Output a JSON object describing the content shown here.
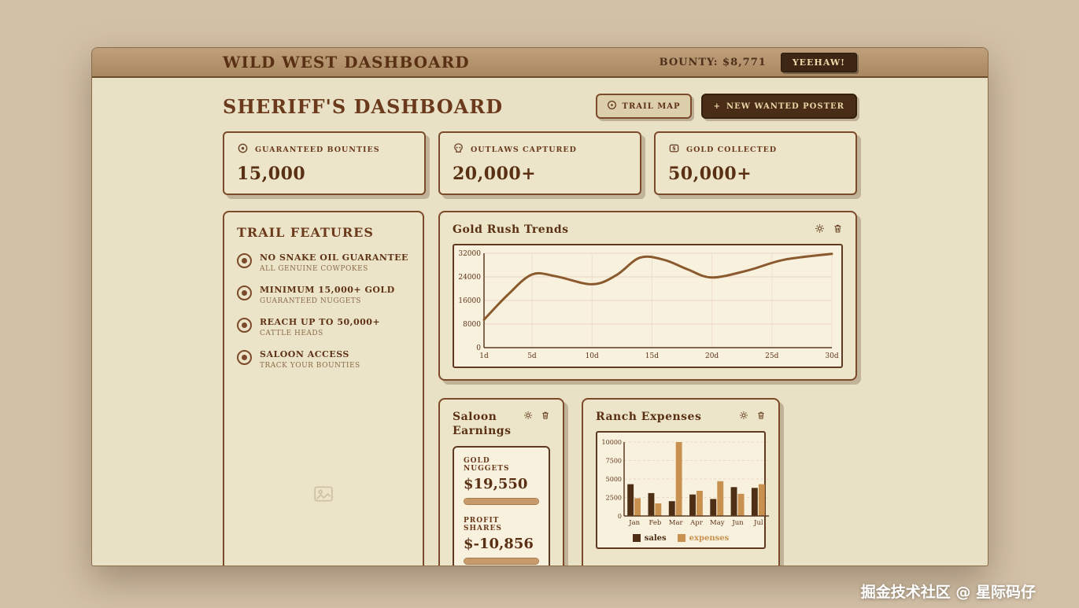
{
  "watermark": "掘金技术社区 @ 星际码仔",
  "theme": {
    "background": "#d3c1a7",
    "panel_bg": "#e9e1c5",
    "card_bg": "#ece5c9",
    "border_brown": "#7b4a2a",
    "dark_brown": "#4a2d16",
    "cream": "#f8f1de",
    "text_brown": "#5f3317"
  },
  "titlebar": {
    "title": "WILD WEST DASHBOARD",
    "bounty": "BOUNTY: $8,771",
    "yeehaw_label": "YEEHAW!"
  },
  "header": {
    "title": "SHERIFF'S DASHBOARD",
    "trail_map_label": "TRAIL MAP",
    "new_poster_plus": "+",
    "new_poster_label": "NEW WANTED POSTER"
  },
  "stats": [
    {
      "icon": "badge-target-icon",
      "label": "GUARANTEED BOUNTIES",
      "value": "15,000"
    },
    {
      "icon": "skull-icon",
      "label": "OUTLAWS CAPTURED",
      "value": "20,000+"
    },
    {
      "icon": "gold-coin-icon",
      "label": "GOLD COLLECTED",
      "value": "50,000+"
    }
  ],
  "trail_features": {
    "title": "TRAIL FEATURES",
    "items": [
      {
        "title": "NO SNAKE OIL GUARANTEE",
        "subtitle": "ALL GENUINE COWPOKES"
      },
      {
        "title": "MINIMUM 15,000+ GOLD",
        "subtitle": "GUARANTEED NUGGETS"
      },
      {
        "title": "REACH UP TO 50,000+",
        "subtitle": "CATTLE HEADS"
      },
      {
        "title": "SALOON ACCESS",
        "subtitle": "TRACK YOUR BOUNTIES"
      }
    ]
  },
  "saloon": {
    "title": "Saloon Earnings",
    "metrics": [
      {
        "label": "GOLD NUGGETS",
        "value": "$19,550",
        "bar_percent": 100
      },
      {
        "label": "PROFIT SHARES",
        "value": "$-10,856",
        "bar_percent": 100
      }
    ]
  },
  "chart_data": [
    {
      "type": "line",
      "title": "Gold Rush Trends",
      "xlabel": "",
      "ylabel": "",
      "ylim": [
        0,
        32000
      ],
      "y_ticks": [
        0,
        8000,
        16000,
        24000,
        32000
      ],
      "x_ticks": [
        "1d",
        "5d",
        "10d",
        "15d",
        "20d",
        "25d",
        "30d"
      ],
      "x_tick_days": [
        1,
        5,
        10,
        15,
        20,
        25,
        30
      ],
      "grid": true,
      "line_color": "#8a5a2e",
      "points": [
        {
          "day": 1,
          "value": 9500
        },
        {
          "day": 3,
          "value": 18000
        },
        {
          "day": 5,
          "value": 24800
        },
        {
          "day": 7,
          "value": 24200
        },
        {
          "day": 10,
          "value": 21500
        },
        {
          "day": 12,
          "value": 24500
        },
        {
          "day": 14,
          "value": 30500
        },
        {
          "day": 16,
          "value": 29800
        },
        {
          "day": 18,
          "value": 26500
        },
        {
          "day": 20,
          "value": 23800
        },
        {
          "day": 23,
          "value": 26200
        },
        {
          "day": 26,
          "value": 29800
        },
        {
          "day": 30,
          "value": 31800
        }
      ]
    },
    {
      "type": "bar",
      "title": "Ranch Expenses",
      "xlabel": "",
      "ylabel": "",
      "ylim": [
        0,
        10000
      ],
      "y_ticks": [
        0,
        2500,
        5000,
        7500,
        10000
      ],
      "categories": [
        "Jan",
        "Feb",
        "Mar",
        "Apr",
        "May",
        "Jun",
        "Jul"
      ],
      "legend_position": "bottom",
      "series": [
        {
          "name": "sales",
          "color": "#4e2e15",
          "values": [
            4300,
            3100,
            2000,
            2900,
            2300,
            3900,
            3800
          ]
        },
        {
          "name": "expenses",
          "color": "#c9914f",
          "values": [
            2400,
            1700,
            10000,
            3400,
            4700,
            3000,
            4300
          ]
        }
      ]
    }
  ]
}
